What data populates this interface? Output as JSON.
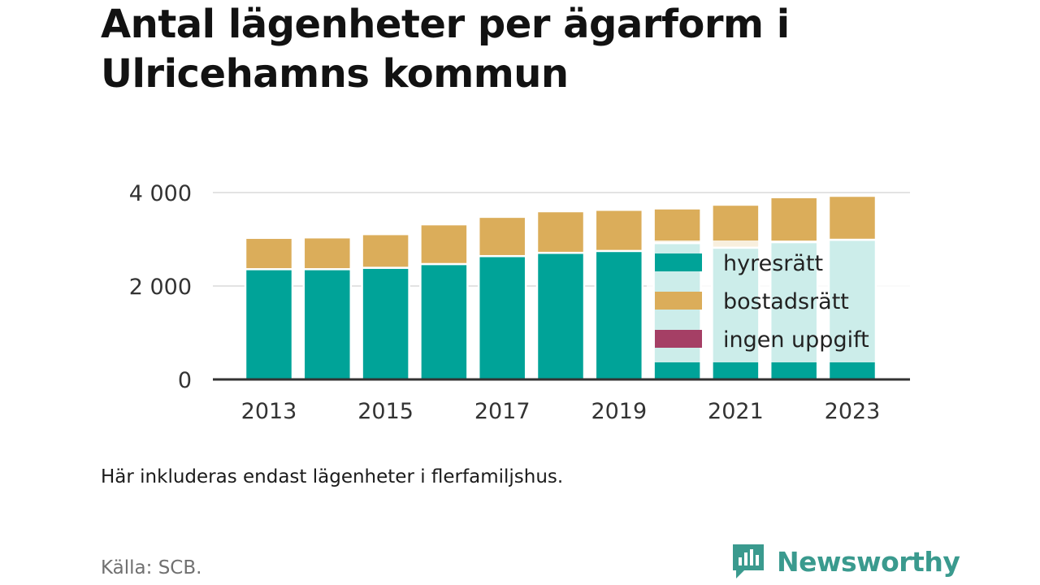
{
  "title": "Antal lägenheter per ägarform i Ulricehamns kommun",
  "note": "Här inkluderas endast lägenheter i flerfamiljshus.",
  "source": "Källa: SCB.",
  "brand": {
    "name": "Newsworthy",
    "icon": "newsworthy-logo-icon"
  },
  "colors": {
    "hyresratt": "#00a398",
    "bostadsratt": "#dbad5a",
    "ingen_uppgift": "#a53f65",
    "grid": "#e3e3e3",
    "axis": "#333333",
    "brand": "#3a9a8e"
  },
  "chart_data": {
    "type": "bar",
    "stacked": true,
    "title": "Antal lägenheter per ägarform i Ulricehamns kommun",
    "categories": [
      "2013",
      "2014",
      "2015",
      "2016",
      "2017",
      "2018",
      "2019",
      "2020",
      "2021",
      "2022",
      "2023"
    ],
    "x_tick_labels": [
      "2013",
      "2015",
      "2017",
      "2019",
      "2021",
      "2023"
    ],
    "y_ticks": [
      0,
      2000,
      4000
    ],
    "y_tick_labels": [
      "0",
      "2 000",
      "4 000"
    ],
    "ylim": [
      0,
      4000
    ],
    "grid": true,
    "legend_position": "inside-right",
    "series": [
      {
        "name": "hyresrätt",
        "color": "#00a398",
        "values": [
          2360,
          2360,
          2390,
          2470,
          2640,
          2710,
          2750,
          2920,
          2820,
          2940,
          2990
        ]
      },
      {
        "name": "bostadsrätt",
        "color": "#dbad5a",
        "values": [
          670,
          680,
          720,
          850,
          840,
          890,
          880,
          740,
          920,
          960,
          940
        ]
      },
      {
        "name": "ingen uppgift",
        "color": "#a53f65",
        "values": [
          0,
          0,
          0,
          0,
          0,
          0,
          0,
          0,
          0,
          0,
          0
        ]
      }
    ]
  }
}
